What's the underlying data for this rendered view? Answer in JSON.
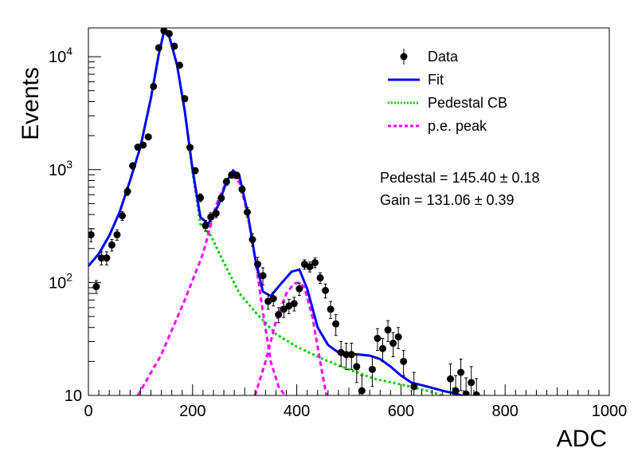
{
  "chart_data": {
    "type": "scatter",
    "xlabel": "ADC",
    "ylabel": "Events",
    "xlim": [
      0,
      1000
    ],
    "ylim": [
      10,
      18000
    ],
    "yscale": "log",
    "grid": false,
    "legend_position": "top-right",
    "x_ticks": [
      "0",
      "200",
      "400",
      "600",
      "800",
      "1000"
    ],
    "y_ticks": [
      {
        "value": 10,
        "base": "10",
        "exp": ""
      },
      {
        "value": 100,
        "base": "10",
        "exp": "2"
      },
      {
        "value": 1000,
        "base": "10",
        "exp": "3"
      },
      {
        "value": 10000,
        "base": "10",
        "exp": "4"
      }
    ],
    "legend": [
      {
        "label": "Data",
        "style": "marker"
      },
      {
        "label": "Fit",
        "style": "solid",
        "color": "#0000ff"
      },
      {
        "label": "Pedestal CB",
        "style": "dotted",
        "color": "#00cc00"
      },
      {
        "label": "p.e. peak",
        "style": "dashed",
        "color": "#ff00ff"
      }
    ],
    "annotations": [
      "Pedestal = 145.40 ± 0.18",
      "Gain = 131.06 ± 0.39"
    ],
    "data_series": {
      "name": "Data",
      "points": [
        [
          5,
          265,
          35
        ],
        [
          15,
          92,
          12
        ],
        [
          25,
          165,
          22
        ],
        [
          35,
          165,
          22
        ],
        [
          45,
          215,
          25
        ],
        [
          55,
          265,
          28
        ],
        [
          65,
          390,
          35
        ],
        [
          75,
          640,
          50
        ],
        [
          85,
          1080,
          70
        ],
        [
          95,
          1580,
          80
        ],
        [
          105,
          1650,
          90
        ],
        [
          115,
          1950,
          100
        ],
        [
          125,
          5450,
          150
        ],
        [
          135,
          12000,
          200
        ],
        [
          145,
          17000,
          250
        ],
        [
          155,
          16000,
          250
        ],
        [
          165,
          12400,
          200
        ],
        [
          175,
          8400,
          180
        ],
        [
          185,
          4250,
          120
        ],
        [
          195,
          1570,
          80
        ],
        [
          205,
          980,
          60
        ],
        [
          215,
          565,
          45
        ],
        [
          225,
          320,
          35
        ],
        [
          235,
          380,
          35
        ],
        [
          245,
          410,
          35
        ],
        [
          255,
          560,
          40
        ],
        [
          265,
          780,
          55
        ],
        [
          275,
          900,
          60
        ],
        [
          285,
          890,
          60
        ],
        [
          295,
          670,
          50
        ],
        [
          305,
          420,
          40
        ],
        [
          315,
          240,
          30
        ],
        [
          325,
          145,
          22
        ],
        [
          335,
          115,
          20
        ],
        [
          345,
          68,
          10
        ],
        [
          355,
          72,
          10
        ],
        [
          365,
          52,
          8
        ],
        [
          375,
          58,
          9
        ],
        [
          385,
          62,
          9
        ],
        [
          395,
          65,
          9
        ],
        [
          405,
          88,
          11
        ],
        [
          415,
          145,
          14
        ],
        [
          425,
          138,
          14
        ],
        [
          435,
          150,
          15
        ],
        [
          445,
          110,
          12
        ],
        [
          455,
          85,
          12
        ],
        [
          465,
          58,
          10
        ],
        [
          475,
          43,
          9
        ],
        [
          485,
          24,
          6
        ],
        [
          495,
          23,
          6
        ],
        [
          505,
          23,
          6
        ],
        [
          515,
          18,
          5
        ],
        [
          525,
          11,
          4
        ],
        [
          545,
          17,
          5
        ],
        [
          555,
          32,
          7
        ],
        [
          565,
          26,
          6
        ],
        [
          575,
          38,
          8
        ],
        [
          585,
          29,
          7
        ],
        [
          595,
          33,
          7
        ],
        [
          605,
          20,
          5
        ],
        [
          625,
          12,
          4
        ],
        [
          695,
          14,
          5
        ],
        [
          705,
          11,
          4
        ],
        [
          715,
          16,
          5
        ],
        [
          725,
          10.3,
          4
        ],
        [
          735,
          13,
          5
        ],
        [
          745,
          10.1,
          4
        ]
      ]
    },
    "fit_series": {
      "name": "Fit",
      "points": [
        [
          0,
          140
        ],
        [
          20,
          180
        ],
        [
          40,
          260
        ],
        [
          60,
          420
        ],
        [
          80,
          800
        ],
        [
          100,
          1600
        ],
        [
          120,
          4300
        ],
        [
          135,
          10500
        ],
        [
          145,
          16500
        ],
        [
          155,
          15200
        ],
        [
          170,
          8500
        ],
        [
          185,
          3300
        ],
        [
          200,
          1000
        ],
        [
          215,
          380
        ],
        [
          230,
          330
        ],
        [
          250,
          490
        ],
        [
          265,
          780
        ],
        [
          278,
          980
        ],
        [
          290,
          870
        ],
        [
          305,
          430
        ],
        [
          320,
          165
        ],
        [
          335,
          83
        ],
        [
          350,
          76
        ],
        [
          370,
          98
        ],
        [
          390,
          125
        ],
        [
          405,
          130
        ],
        [
          420,
          88
        ],
        [
          440,
          40
        ],
        [
          460,
          28
        ],
        [
          480,
          24
        ],
        [
          500,
          23.5
        ],
        [
          520,
          23
        ],
        [
          540,
          22.5
        ],
        [
          560,
          21
        ],
        [
          580,
          18
        ],
        [
          600,
          15
        ],
        [
          620,
          13
        ],
        [
          650,
          12
        ],
        [
          680,
          11
        ],
        [
          710,
          10.2
        ],
        [
          720,
          9.8
        ]
      ]
    },
    "pedestal_series": {
      "name": "Pedestal CB",
      "points": [
        [
          0,
          140
        ],
        [
          20,
          180
        ],
        [
          40,
          260
        ],
        [
          60,
          420
        ],
        [
          80,
          800
        ],
        [
          100,
          1600
        ],
        [
          120,
          4300
        ],
        [
          135,
          10500
        ],
        [
          145,
          16500
        ],
        [
          155,
          15200
        ],
        [
          170,
          8500
        ],
        [
          185,
          3300
        ],
        [
          200,
          950
        ],
        [
          215,
          330
        ],
        [
          235,
          260
        ],
        [
          260,
          150
        ],
        [
          290,
          80
        ],
        [
          320,
          55
        ],
        [
          360,
          35
        ],
        [
          400,
          27
        ],
        [
          450,
          21
        ],
        [
          500,
          17
        ],
        [
          550,
          14
        ],
        [
          600,
          12.5
        ],
        [
          650,
          11
        ],
        [
          680,
          10
        ]
      ]
    },
    "pe_peaks": [
      {
        "name": "p.e. peak 1",
        "points": [
          [
            95,
            10
          ],
          [
            140,
            23
          ],
          [
            185,
            70
          ],
          [
            220,
            180
          ],
          [
            245,
            480
          ],
          [
            265,
            790
          ],
          [
            278,
            870
          ],
          [
            290,
            770
          ],
          [
            305,
            420
          ],
          [
            320,
            165
          ],
          [
            335,
            55
          ],
          [
            350,
            20
          ],
          [
            365,
            12
          ],
          [
            385,
            9
          ]
        ]
      },
      {
        "name": "p.e. peak 2",
        "points": [
          [
            320,
            10
          ],
          [
            340,
            20
          ],
          [
            360,
            45
          ],
          [
            380,
            80
          ],
          [
            395,
            98
          ],
          [
            405,
            100
          ],
          [
            415,
            90
          ],
          [
            430,
            50
          ],
          [
            445,
            20
          ],
          [
            455,
            11
          ],
          [
            460,
            9
          ]
        ]
      }
    ]
  }
}
